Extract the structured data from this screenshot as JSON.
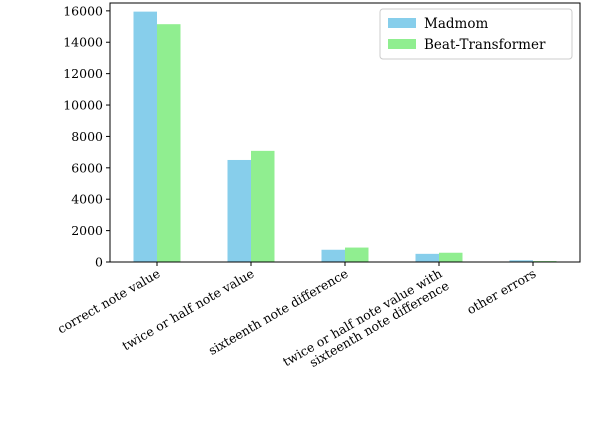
{
  "chart_data": {
    "type": "bar",
    "categories": [
      [
        "correct note value"
      ],
      [
        "twice or half note value"
      ],
      [
        "sixteenth note difference"
      ],
      [
        "twice or half note value with",
        "sixteenth note difference"
      ],
      [
        "other errors"
      ]
    ],
    "series": [
      {
        "name": "Madmom",
        "color": "#87ceeb",
        "values": [
          15950,
          6500,
          780,
          520,
          110
        ]
      },
      {
        "name": "Beat-Transformer",
        "color": "#90ee90",
        "values": [
          15150,
          7080,
          920,
          590,
          60
        ]
      }
    ],
    "ylim": [
      0,
      16500
    ],
    "yticks": [
      "0",
      "2000",
      "4000",
      "6000",
      "8000",
      "10000",
      "12000",
      "14000",
      "16000"
    ],
    "legend_position": "upper right",
    "title": "",
    "xlabel": "",
    "ylabel": ""
  }
}
